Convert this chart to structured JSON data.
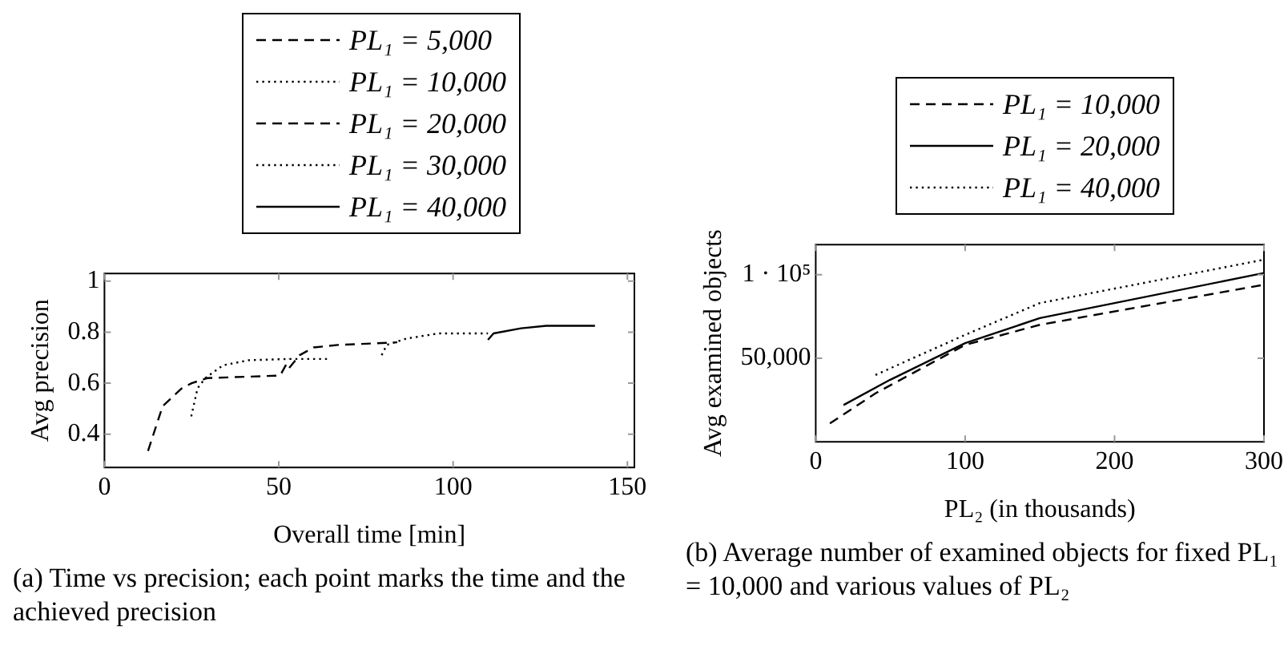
{
  "chart_data": [
    {
      "type": "line",
      "xlabel": "Overall time [min]",
      "ylabel": "Avg precision",
      "xlim": [
        0,
        152
      ],
      "xticks": [
        0,
        50,
        100,
        150
      ],
      "ylim": [
        0.27,
        1.03
      ],
      "yticks": [
        0.4,
        0.6,
        0.8,
        1
      ],
      "legend": "top",
      "grid": false,
      "marker": "none",
      "annotations": [
        "(a) Time vs precision; each point marks the time and the achieved precision"
      ],
      "series": [
        {
          "name": "PL₁ = 5,000",
          "color": "#000000",
          "line_style": "dashed",
          "x": [
            12.5,
            16.7,
            22.2,
            25,
            29.5,
            50.4,
            53
          ],
          "values": [
            0.335,
            0.51,
            0.58,
            0.6,
            0.62,
            0.63,
            0.695
          ]
        },
        {
          "name": "PL₁ = 10,000",
          "color": "#000000",
          "line_style": "dotted",
          "x": [
            24.9,
            26.7,
            28.9,
            34,
            41.3,
            53,
            64
          ],
          "values": [
            0.47,
            0.58,
            0.62,
            0.67,
            0.69,
            0.695,
            0.695
          ]
        },
        {
          "name": "PL₁ = 20,000",
          "color": "#000000",
          "line_style": "dashed",
          "x": [
            53,
            56,
            60,
            67,
            84
          ],
          "values": [
            0.66,
            0.71,
            0.74,
            0.75,
            0.76
          ]
        },
        {
          "name": "PL₁ = 30,000",
          "color": "#000000",
          "line_style": "dotted",
          "x": [
            79.5,
            81,
            86.7,
            95.8,
            110
          ],
          "values": [
            0.71,
            0.75,
            0.775,
            0.795,
            0.795
          ]
        },
        {
          "name": "PL₁ = 40,000",
          "color": "#000000",
          "line_style": "solid",
          "x": [
            110,
            111.6,
            119.5,
            126.7,
            140.7
          ],
          "values": [
            0.77,
            0.795,
            0.815,
            0.825,
            0.825
          ]
        }
      ]
    },
    {
      "type": "line",
      "xlabel": "PL₂ (in thousands)",
      "ylabel": "Avg examined objects",
      "xlim": [
        0,
        300
      ],
      "xticks": [
        0,
        100,
        200,
        300
      ],
      "ylim": [
        0,
        118000
      ],
      "yticks": [
        {
          "value": 50000,
          "label": "50,000"
        },
        {
          "value": 100000,
          "label": "1 · 10⁵"
        }
      ],
      "legend": "top",
      "grid": false,
      "marker": "none",
      "annotations": [
        "(b) Average number of examined objects for fixed PL₁ = 10,000 and various values of PL₂"
      ],
      "series": [
        {
          "name": "PL₁ = 10,000",
          "color": "#000000",
          "line_style": "dashed",
          "x": [
            9.5,
            40,
            100,
            150,
            300
          ],
          "values": [
            11000,
            29000,
            58000,
            70000,
            94000
          ]
        },
        {
          "name": "PL₁ = 20,000",
          "color": "#000000",
          "line_style": "solid",
          "x": [
            18.6,
            49.6,
            100,
            150,
            300
          ],
          "values": [
            22000,
            37000,
            59000,
            74000,
            101000
          ]
        },
        {
          "name": "PL₁ = 40,000",
          "color": "#000000",
          "line_style": "dotted",
          "x": [
            40,
            100,
            150,
            300
          ],
          "values": [
            40000,
            64000,
            83000,
            109000
          ]
        }
      ]
    }
  ]
}
